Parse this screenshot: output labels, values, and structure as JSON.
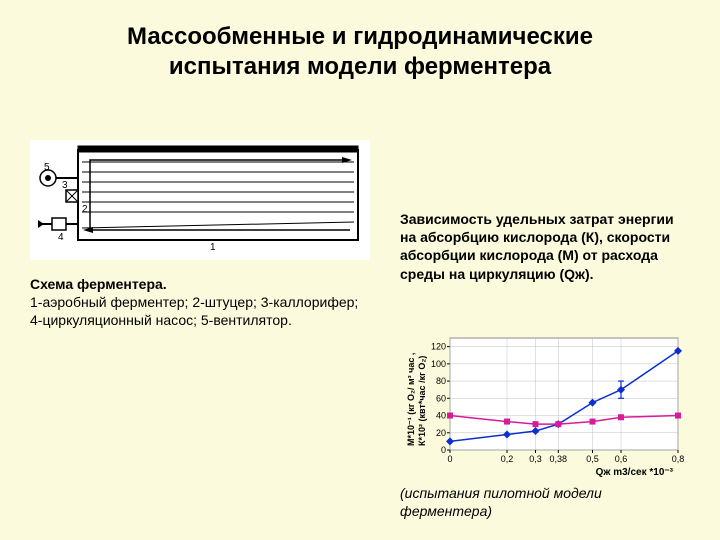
{
  "title": "Массообменные и гидродинамические испытания модели ферментера",
  "schematic": {
    "caption_bold": "Схема ферментера.",
    "caption_body": "1-аэробный ферментер; 2-штуцер; 3-каллорифер; 4-циркуляционный насос; 5-вентилятор.",
    "labels": [
      "1",
      "2",
      "3",
      "4",
      "5"
    ]
  },
  "right_caption": "Зависимость удельных затрат энергии на абсорбцию кислорода (К), скорости абсорбции кислорода (М) от расхода среды на циркуляцию (Qж).",
  "chart": {
    "type": "line",
    "xlabel": "Qж m3/сек *10⁻³",
    "ylabel_line1": "М*10⁻¹ (кг О₂/ м³ час ,",
    "ylabel_line2": "К*10² (квт*час /кг О₂)",
    "xlim": [
      0,
      0.8
    ],
    "ylim": [
      0,
      130
    ],
    "x_ticks": [
      0,
      0.2,
      0.3,
      0.38,
      0.5,
      0.6,
      0.8
    ],
    "x_tick_labels": [
      "0",
      "0,2",
      "0,3",
      "0,38",
      "0,5",
      "0,6",
      "0,8"
    ],
    "y_ticks": [
      0,
      20,
      40,
      60,
      80,
      100,
      120
    ],
    "background_color": "#ffffff",
    "grid_color": "#c0c0c0",
    "series": [
      {
        "name": "M",
        "color": "#0b2fd1",
        "marker": "diamond",
        "x": [
          0,
          0.2,
          0.3,
          0.38,
          0.5,
          0.6,
          0.8
        ],
        "y": [
          10,
          18,
          22,
          30,
          55,
          70,
          115
        ],
        "err_x": 0.6,
        "err_y": 70,
        "err_range": 10
      },
      {
        "name": "K",
        "color": "#d81b9a",
        "marker": "square",
        "x": [
          0,
          0.2,
          0.3,
          0.38,
          0.5,
          0.6,
          0.8
        ],
        "y": [
          40,
          33,
          30,
          30,
          33,
          38,
          40
        ]
      }
    ]
  },
  "footnote": "(испытания пилотной модели ферментера)"
}
